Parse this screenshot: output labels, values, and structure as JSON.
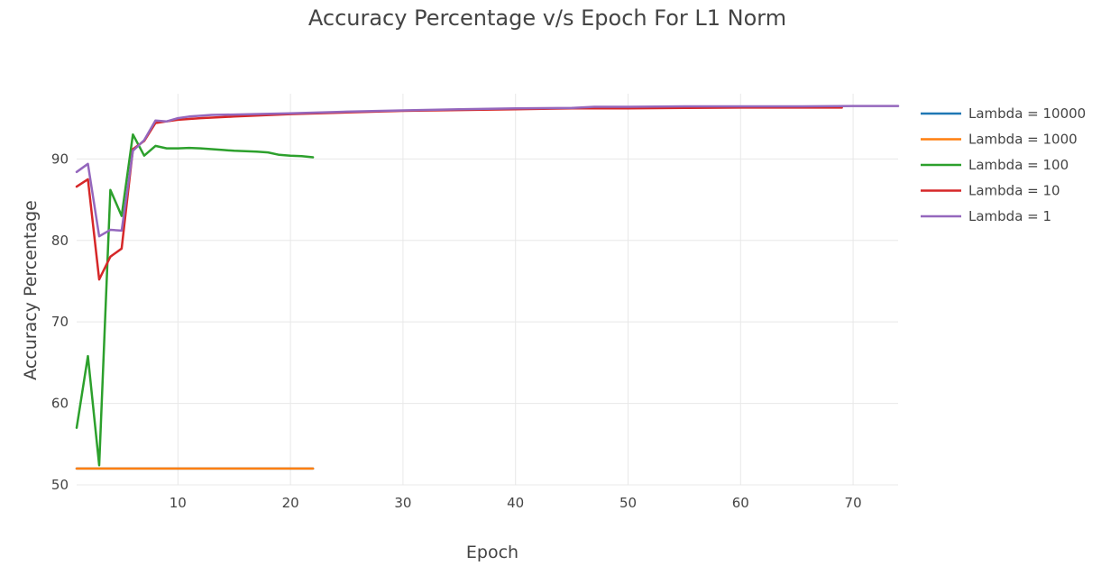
{
  "chart_data": {
    "type": "line",
    "title": "Accuracy Percentage v/s Epoch For L1 Norm",
    "xlabel": "Epoch",
    "ylabel": "Accuracy Percentage",
    "xlim": [
      1,
      74
    ],
    "ylim": [
      50,
      98
    ],
    "x_ticks": [
      10,
      20,
      30,
      40,
      50,
      60,
      70
    ],
    "y_ticks": [
      50,
      60,
      70,
      80,
      90
    ],
    "grid": true,
    "legend_position": "top-right",
    "series": [
      {
        "name": "Lambda = 10000",
        "color": "#1f77b4",
        "x": [
          1,
          2,
          3,
          4,
          5,
          6,
          7,
          8,
          9,
          10,
          11,
          12,
          13,
          14,
          15,
          16,
          17,
          18,
          19,
          20,
          21,
          22
        ],
        "y": [
          52,
          52,
          52,
          52,
          52,
          52,
          52,
          52,
          52,
          52,
          52,
          52,
          52,
          52,
          52,
          52,
          52,
          52,
          52,
          52,
          52,
          52
        ]
      },
      {
        "name": "Lambda = 1000",
        "color": "#ff7f0e",
        "x": [
          1,
          2,
          3,
          4,
          5,
          6,
          7,
          8,
          9,
          10,
          11,
          12,
          13,
          14,
          15,
          16,
          17,
          18,
          19,
          20,
          21,
          22
        ],
        "y": [
          52,
          52,
          52,
          52,
          52,
          52,
          52,
          52,
          52,
          52,
          52,
          52,
          52,
          52,
          52,
          52,
          52,
          52,
          52,
          52,
          52,
          52
        ]
      },
      {
        "name": "Lambda = 100",
        "color": "#2ca02c",
        "x": [
          1,
          2,
          3,
          4,
          5,
          6,
          7,
          8,
          9,
          10,
          11,
          12,
          13,
          14,
          15,
          16,
          17,
          18,
          19,
          20,
          21,
          22
        ],
        "y": [
          57,
          65.8,
          52.4,
          86.2,
          83,
          93,
          90.4,
          91.6,
          91.3,
          91.3,
          91.35,
          91.3,
          91.2,
          91.1,
          91,
          90.95,
          90.9,
          90.8,
          90.5,
          90.4,
          90.35,
          90.2
        ]
      },
      {
        "name": "Lambda = 10",
        "color": "#d62728",
        "x": [
          1,
          2,
          3,
          4,
          5,
          6,
          7,
          8,
          9,
          10,
          12,
          15,
          20,
          25,
          30,
          35,
          40,
          45,
          50,
          55,
          60,
          65,
          69
        ],
        "y": [
          86.6,
          87.5,
          75.2,
          78,
          79,
          91.2,
          92.2,
          94.4,
          94.6,
          94.8,
          95,
          95.2,
          95.5,
          95.7,
          95.9,
          96,
          96.1,
          96.2,
          96.2,
          96.25,
          96.3,
          96.3,
          96.3
        ]
      },
      {
        "name": "Lambda = 1",
        "color": "#9467bd",
        "x": [
          1,
          2,
          3,
          4,
          5,
          6,
          7,
          8,
          9,
          10,
          11,
          13,
          15,
          20,
          25,
          30,
          35,
          40,
          45,
          47,
          50,
          55,
          60,
          65,
          70,
          74
        ],
        "y": [
          88.4,
          89.4,
          80.5,
          81.3,
          81.2,
          91,
          92.3,
          94.7,
          94.6,
          95,
          95.2,
          95.4,
          95.45,
          95.6,
          95.8,
          95.95,
          96.1,
          96.2,
          96.25,
          96.4,
          96.4,
          96.45,
          96.45,
          96.45,
          96.5,
          96.5
        ]
      }
    ]
  }
}
